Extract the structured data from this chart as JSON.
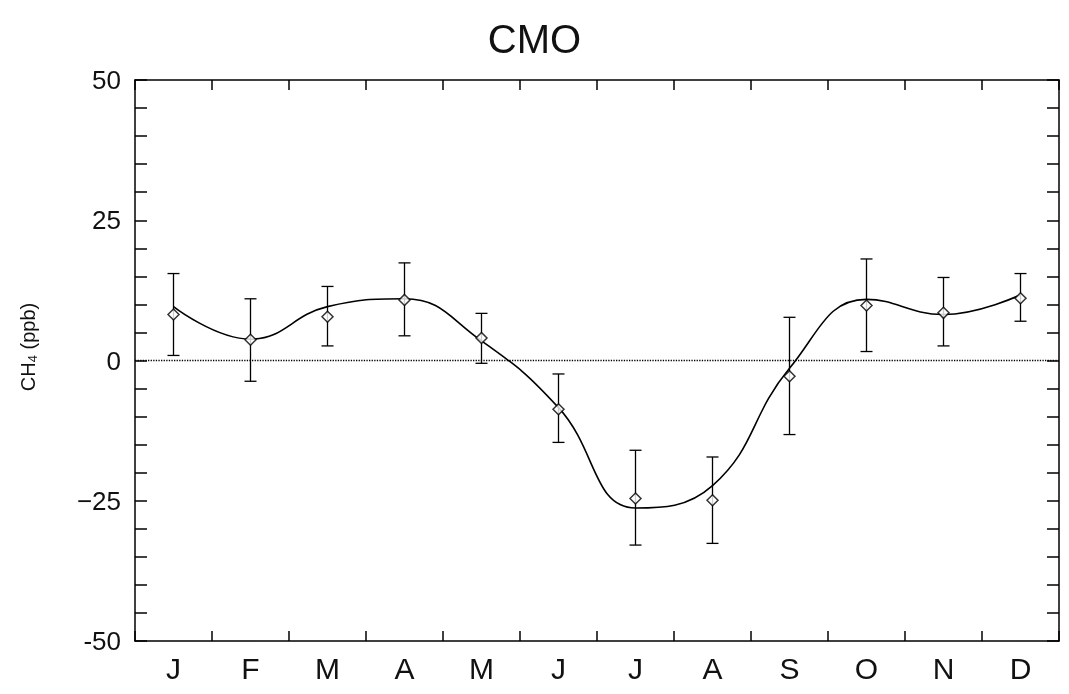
{
  "chart_data": {
    "type": "scatter",
    "title": "CMO",
    "ylabel": "CH$_{4}$ (ppb)",
    "categories": [
      "J",
      "F",
      "M",
      "A",
      "M",
      "J",
      "J",
      "A",
      "S",
      "O",
      "N",
      "D"
    ],
    "ylim": [
      -50,
      50
    ],
    "yticks": [
      -50,
      {
        "value": -45,
        "label": null
      },
      {
        "value": -40,
        "label": null
      },
      {
        "value": -35,
        "label": null
      },
      {
        "value": -30,
        "label": null
      },
      {
        "value": -25,
        "label": "−25"
      },
      {
        "value": -20,
        "label": null
      },
      {
        "value": -15,
        "label": null
      },
      {
        "value": -10,
        "label": null
      },
      {
        "value": -5,
        "label": null
      },
      0,
      {
        "value": 5,
        "label": null
      },
      {
        "value": 10,
        "label": null
      },
      {
        "value": 15,
        "label": null
      },
      {
        "value": 20,
        "label": null
      },
      25,
      {
        "value": 30,
        "label": null
      },
      {
        "value": 35,
        "label": null
      },
      {
        "value": 40,
        "label": null
      },
      {
        "value": 45,
        "label": null
      },
      50
    ],
    "grid": false,
    "ref_lines": [
      {
        "axis": "y",
        "value": 0,
        "line_style": "dotted",
        "color": "#000000"
      }
    ],
    "series": [
      {
        "marker": "diamond",
        "color": "#000000",
        "values": [
          8.2,
          3.7,
          7.8,
          10.8,
          4.0,
          -8.7,
          -24.6,
          -24.9,
          -2.8,
          9.8,
          8.5,
          11.1
        ],
        "errors": [
          [
            0.9,
            15.5
          ],
          [
            -3.7,
            11
          ],
          [
            2.6,
            13.2
          ],
          [
            4.4,
            17.4
          ],
          [
            -0.5,
            8.4
          ],
          [
            -14.6,
            -2.4
          ],
          [
            -32.9,
            -16
          ],
          [
            -32.6,
            -17.2
          ],
          [
            -13.2,
            7.7
          ],
          [
            1.6,
            18.1
          ],
          [
            2.6,
            14.8
          ],
          [
            7,
            15.5
          ]
        ]
      },
      {
        "type": "line",
        "marker": "none",
        "line_style": "solid",
        "color": "#000000",
        "values": [
          9.6,
          3.8,
          9.6,
          11,
          3.5,
          -8.4,
          -26.3,
          -22.3,
          -1.4,
          10.9,
          8.2,
          11.7
        ]
      }
    ]
  }
}
